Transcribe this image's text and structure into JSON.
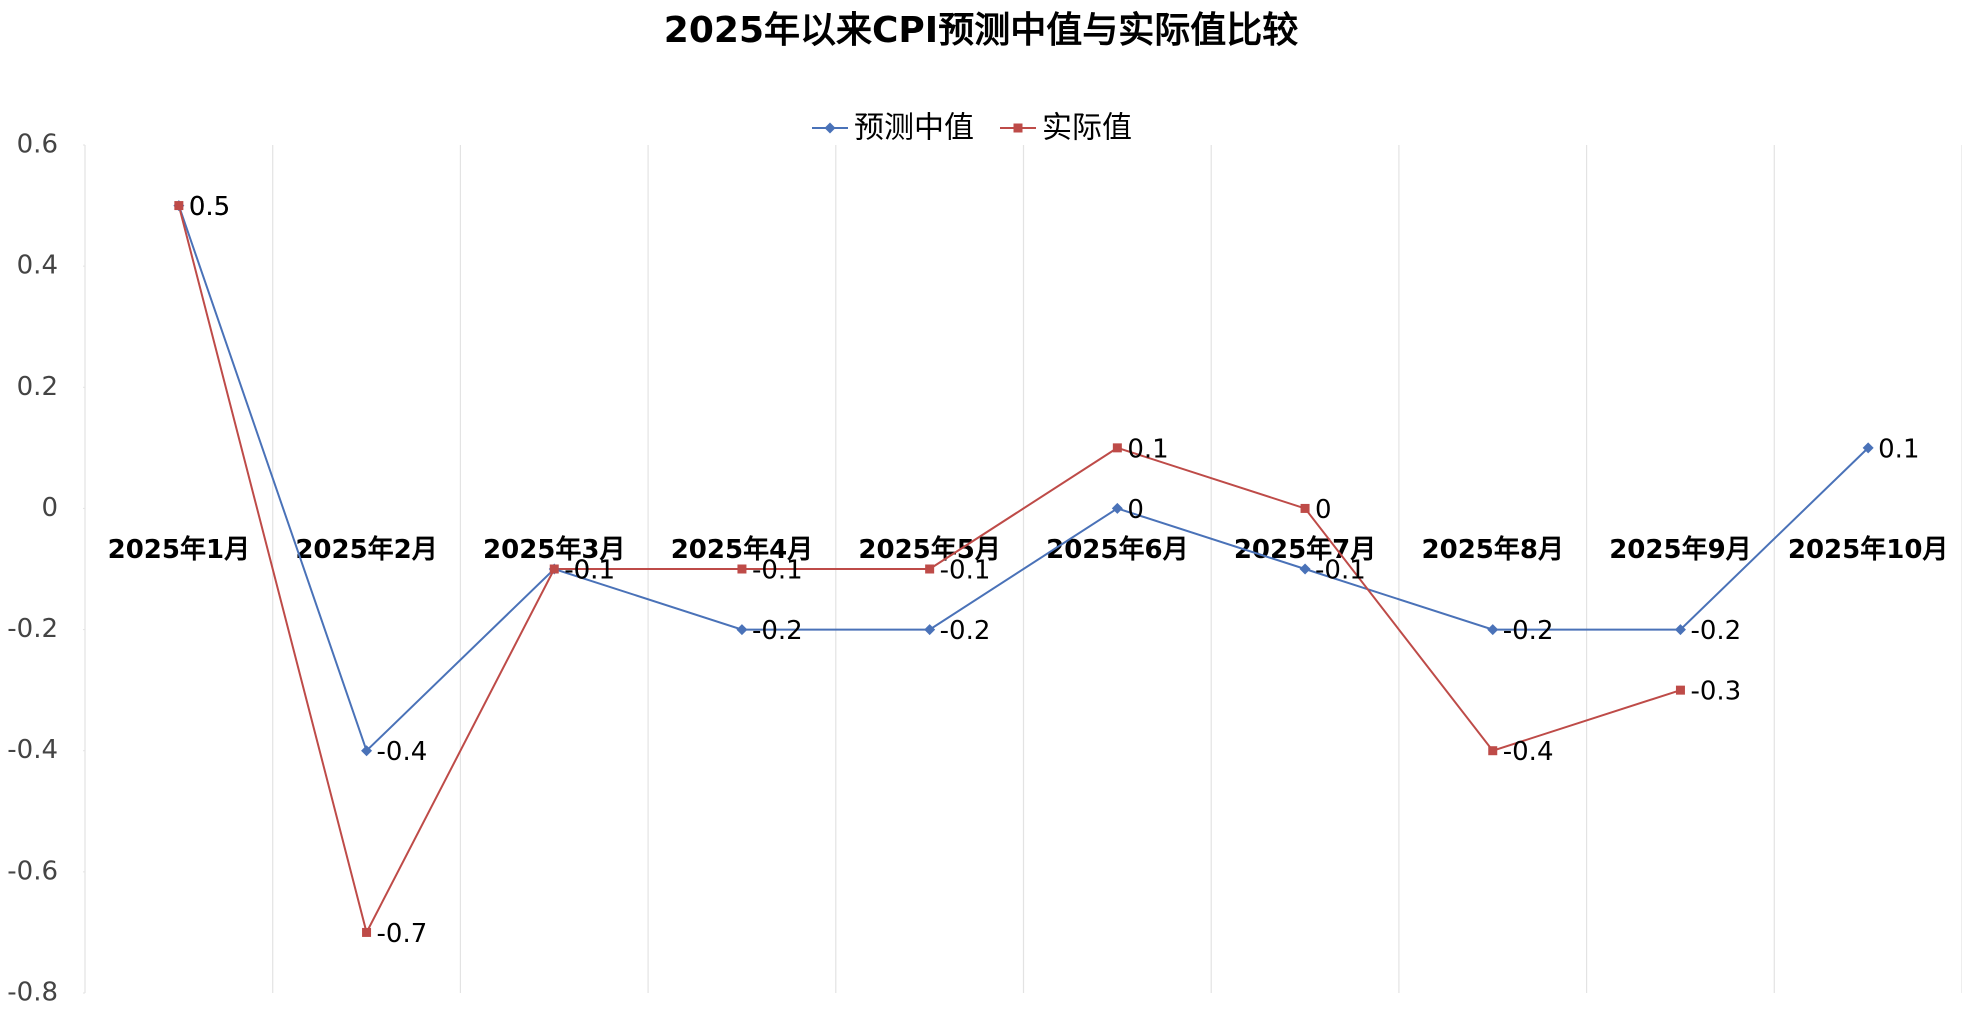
{
  "chart_data": {
    "type": "line",
    "title": "2025年以来CPI预测中值与实际值比较",
    "categories": [
      "2025年1月",
      "2025年2月",
      "2025年3月",
      "2025年4月",
      "2025年5月",
      "2025年6月",
      "2025年7月",
      "2025年8月",
      "2025年9月",
      "2025年10月"
    ],
    "series": [
      {
        "name": "预测中值",
        "color": "#4a72b8",
        "marker": "diamond",
        "values": [
          0.5,
          -0.4,
          -0.1,
          -0.2,
          -0.2,
          0,
          -0.1,
          -0.2,
          -0.2,
          0.1
        ]
      },
      {
        "name": "实际值",
        "color": "#be4b48",
        "marker": "square",
        "values": [
          0.5,
          -0.7,
          -0.1,
          -0.1,
          -0.1,
          0.1,
          0,
          -0.4,
          -0.3,
          null
        ]
      }
    ],
    "ylim": [
      -0.8,
      0.6
    ],
    "yticks": [
      0.6,
      0.4,
      0.2,
      0,
      -0.2,
      -0.4,
      -0.6,
      -0.8
    ],
    "grid": true,
    "legend": "top"
  }
}
